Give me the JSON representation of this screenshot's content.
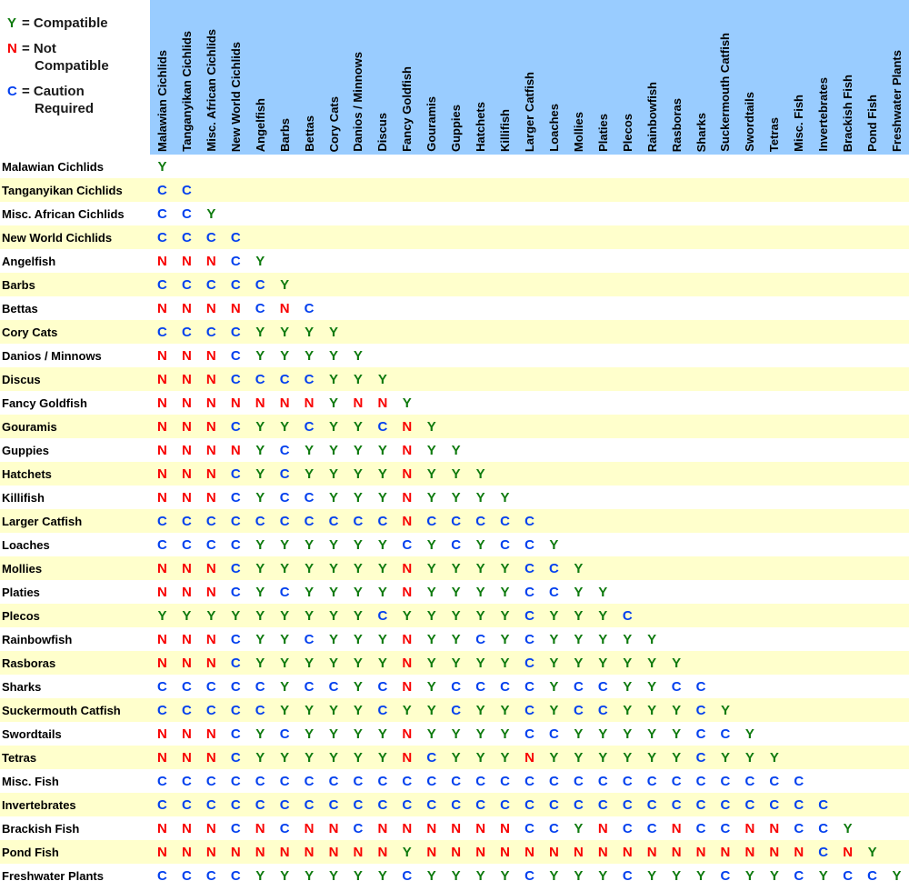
{
  "legend": {
    "entries": [
      {
        "symbol": "Y",
        "line1": "= Compatible",
        "line2": ""
      },
      {
        "symbol": "N",
        "line1": "= Not",
        "line2": "Compatible"
      },
      {
        "symbol": "C",
        "line1": "= Caution",
        "line2": "Required"
      }
    ]
  },
  "colors": {
    "header_bg": "#99CCFF",
    "row_bg": "#FFFFFF",
    "row_alt_bg": "#FFFFCC",
    "compatible": "#0E7A0E",
    "not_compatible": "#F80000",
    "caution": "#0340EE"
  },
  "chart_data": {
    "type": "heatmap",
    "codes": {
      "Y": "Compatible",
      "N": "Not Compatible",
      "C": "Caution Required"
    },
    "species": [
      "Malawian Cichlids",
      "Tanganyikan Cichlids",
      "Misc. African Cichlids",
      "New World Cichlids",
      "Angelfish",
      "Barbs",
      "Bettas",
      "Cory Cats",
      "Danios / Minnows",
      "Discus",
      "Fancy Goldfish",
      "Gouramis",
      "Guppies",
      "Hatchets",
      "Killifish",
      "Larger Catfish",
      "Loaches",
      "Mollies",
      "Platies",
      "Plecos",
      "Rainbowfish",
      "Rasboras",
      "Sharks",
      "Suckermouth Catfish",
      "Swordtails",
      "Tetras",
      "Misc. Fish",
      "Invertebrates",
      "Brackish Fish",
      "Pond Fish",
      "Freshwater Plants"
    ],
    "rows": [
      "Y",
      "CC",
      "CCY",
      "CCCC",
      "NNNCY",
      "CCCCCY",
      "NNNNCNC",
      "CCCCYYYY",
      "NNNCYYYYY",
      "NNNCCCCYYY",
      "NNNNNNNYNNY",
      "NNNCYYCYYCNY",
      "NNNNYCYYYYNYY",
      "NNNCYCYYYYNYYY",
      "NNNCYCCYYYNYYYY",
      "CCCCCCCCCCNCCCCC",
      "CCCCYYYYYYCYCYCCY",
      "NNNCYYYYYYNYYYYCCY",
      "NNNCYCYYYYNYYYYCCYY",
      "YYYYYYYYYCYYYYYCYYYC",
      "NNNCYYCYYYNYYCYCYYYYY",
      "NNNCYYYYYYNYYYYCYYYYYY",
      "CCCCCYCCYCNYCCCCYCCYYCC",
      "CCCCCYYYYCYYCYYCYCCYYYCY",
      "NNNCYCYYYYNYYYYCCYYYYYCCY",
      "NNNCYYYYYYNCYYYNYYYYYYCYYY",
      "CCCCCCCCCCCCCCCCCCCCCCCCCCC",
      "CCCCCCCCCCCCCCCCCCCCCCCCCCCC",
      "NNNCNCNNCNNNNNNCCYNCCNCCNNCCY",
      "NNNNNNNNNNYNNNNNNNNNNNNNNNNCNY",
      "CCCCYYYYYYCYYYYCYYYCYYYCYYCYCCY"
    ]
  }
}
